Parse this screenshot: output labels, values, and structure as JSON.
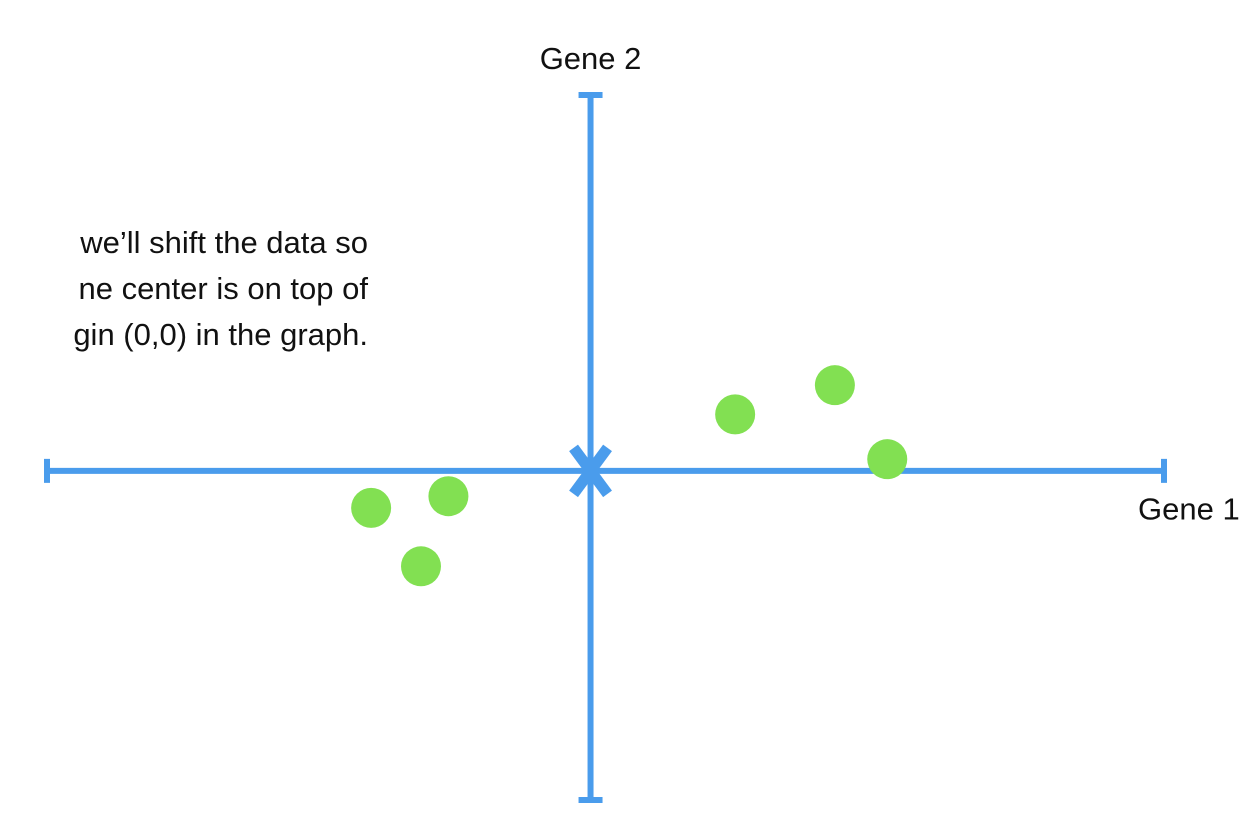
{
  "caption": {
    "lines": [
      "we’ll shift the data so",
      "ne center is on top of",
      "gin (0,0) in the graph."
    ]
  },
  "colors": {
    "axis": "#4a9cec",
    "points": "#82e052",
    "center_marker": "#4a9cec",
    "text": "#111111",
    "background": "#ffffff"
  },
  "chart_data": {
    "type": "scatter",
    "xlabel": "Gene 1",
    "ylabel": "Gene 2",
    "xlim": [
      -10.9,
      11.5
    ],
    "ylim": [
      -8.45,
      9.65
    ],
    "grid": false,
    "center_marker": {
      "shape": "x",
      "x": 0,
      "y": 0
    },
    "series": [
      {
        "points": [
          {
            "x": 2.9,
            "y": 1.45
          },
          {
            "x": 4.9,
            "y": 2.2
          },
          {
            "x": 5.95,
            "y": 0.3
          },
          {
            "x": -2.85,
            "y": -0.65
          },
          {
            "x": -4.4,
            "y": -0.95
          },
          {
            "x": -3.4,
            "y": -2.45
          }
        ]
      }
    ]
  }
}
